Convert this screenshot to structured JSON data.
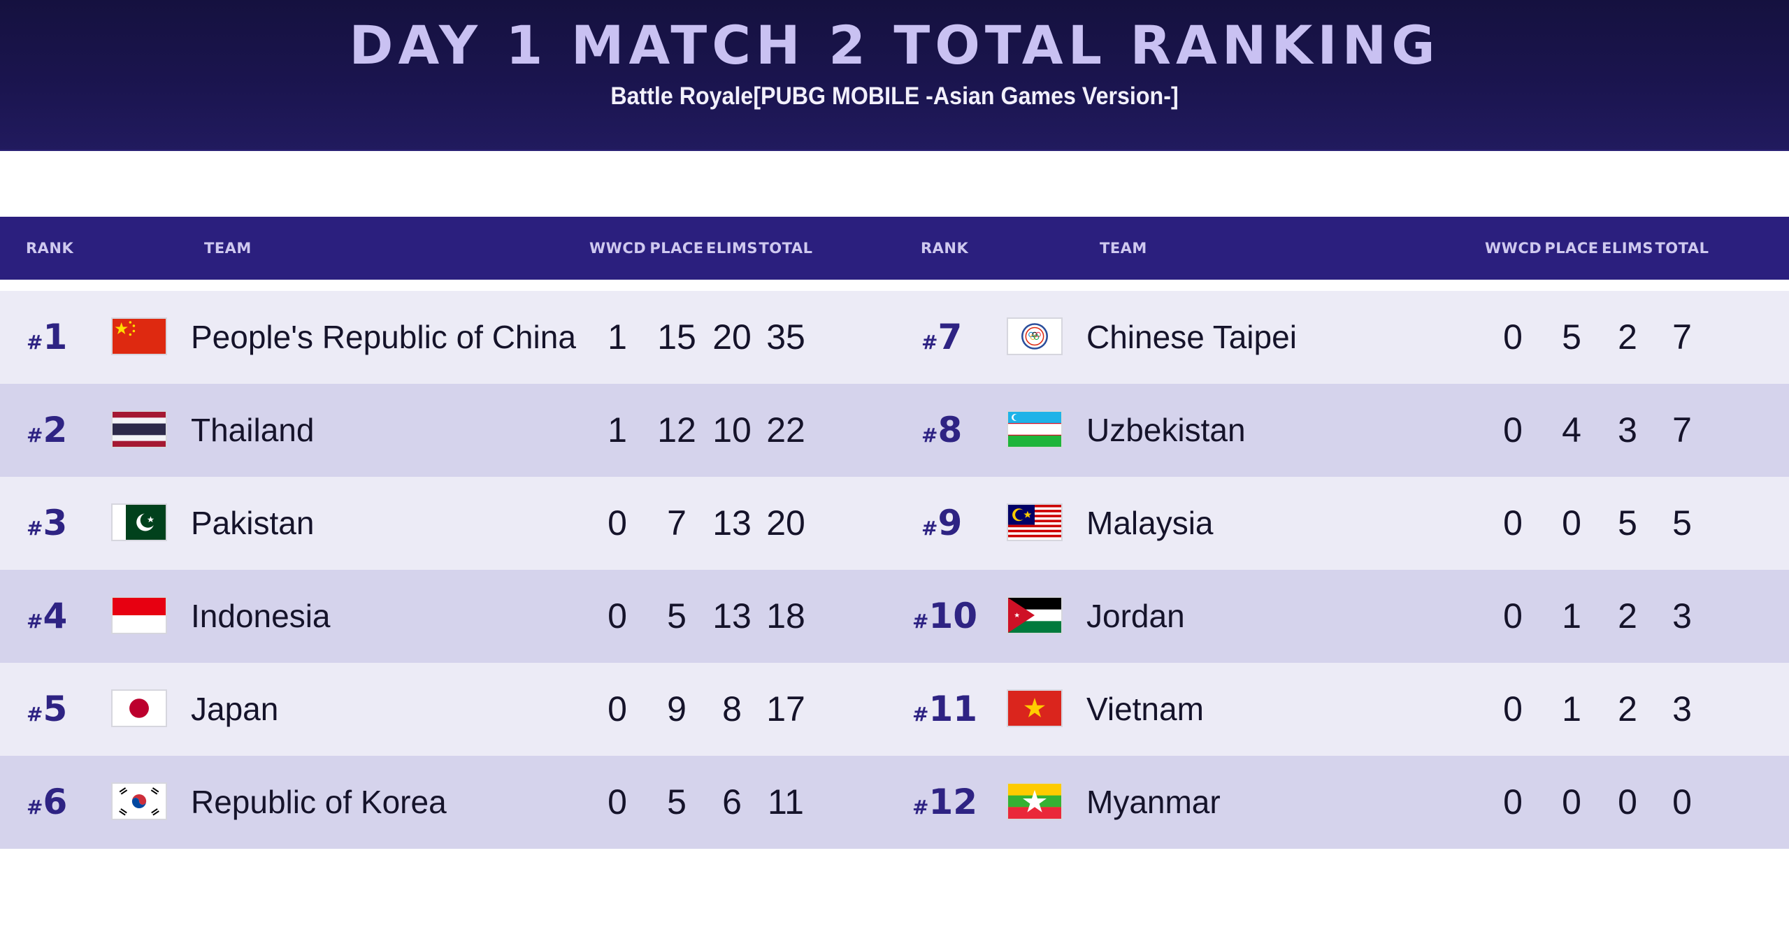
{
  "header": {
    "title": "DAY 1 MATCH 2 TOTAL RANKING",
    "subtitle": "Battle Royale[PUBG MOBILE -Asian Games Version-]"
  },
  "columns": {
    "rank": "RANK",
    "team": "TEAM",
    "wwcd": "WWCD",
    "place": "PLACE",
    "elims": "ELIMS",
    "total": "TOTAL"
  },
  "left": [
    {
      "hash": "#",
      "rank": "1",
      "team": "People's Republic of China",
      "flag": "china-flag-icon",
      "wwcd": "1",
      "place": "15",
      "elims": "20",
      "total": "35"
    },
    {
      "hash": "#",
      "rank": "2",
      "team": "Thailand",
      "flag": "thailand-flag-icon",
      "wwcd": "1",
      "place": "12",
      "elims": "10",
      "total": "22"
    },
    {
      "hash": "#",
      "rank": "3",
      "team": "Pakistan",
      "flag": "pakistan-flag-icon",
      "wwcd": "0",
      "place": "7",
      "elims": "13",
      "total": "20"
    },
    {
      "hash": "#",
      "rank": "4",
      "team": "Indonesia",
      "flag": "indonesia-flag-icon",
      "wwcd": "0",
      "place": "5",
      "elims": "13",
      "total": "18"
    },
    {
      "hash": "#",
      "rank": "5",
      "team": "Japan",
      "flag": "japan-flag-icon",
      "wwcd": "0",
      "place": "9",
      "elims": "8",
      "total": "17"
    },
    {
      "hash": "#",
      "rank": "6",
      "team": "Republic of Korea",
      "flag": "korea-flag-icon",
      "wwcd": "0",
      "place": "5",
      "elims": "6",
      "total": "11"
    }
  ],
  "right": [
    {
      "hash": "#",
      "rank": "7",
      "team": "Chinese Taipei",
      "flag": "chinese-taipei-flag-icon",
      "wwcd": "0",
      "place": "5",
      "elims": "2",
      "total": "7"
    },
    {
      "hash": "#",
      "rank": "8",
      "team": "Uzbekistan",
      "flag": "uzbekistan-flag-icon",
      "wwcd": "0",
      "place": "4",
      "elims": "3",
      "total": "7"
    },
    {
      "hash": "#",
      "rank": "9",
      "team": "Malaysia",
      "flag": "malaysia-flag-icon",
      "wwcd": "0",
      "place": "0",
      "elims": "5",
      "total": "5"
    },
    {
      "hash": "#",
      "rank": "10",
      "team": "Jordan",
      "flag": "jordan-flag-icon",
      "wwcd": "0",
      "place": "1",
      "elims": "2",
      "total": "3"
    },
    {
      "hash": "#",
      "rank": "11",
      "team": "Vietnam",
      "flag": "vietnam-flag-icon",
      "wwcd": "0",
      "place": "1",
      "elims": "2",
      "total": "3"
    },
    {
      "hash": "#",
      "rank": "12",
      "team": "Myanmar",
      "flag": "myanmar-flag-icon",
      "wwcd": "0",
      "place": "0",
      "elims": "0",
      "total": "0"
    }
  ],
  "colors": {
    "banner": "#1b1550",
    "header_bar": "#2b1f7e",
    "rank_text": "#2e2383",
    "row_light": "#ecebf6",
    "row_dark": "#d5d3ec"
  }
}
